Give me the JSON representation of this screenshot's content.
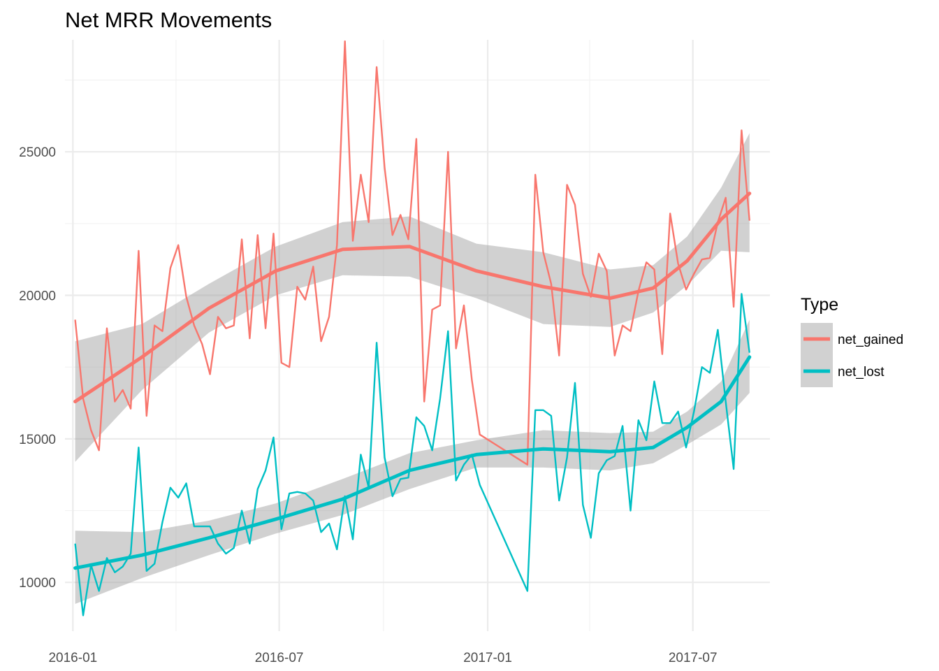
{
  "chart_data": {
    "type": "line",
    "title": "Net MRR Movements",
    "xlabel": "",
    "ylabel": "",
    "x_axis": {
      "kind": "date",
      "range": [
        "2015-12-25",
        "2017-09-07"
      ],
      "tick_labels": [
        "2016-01",
        "2016-07",
        "2017-01",
        "2017-07"
      ],
      "tick_dates": [
        "2016-01-01",
        "2016-07-01",
        "2017-01-01",
        "2017-07-01"
      ],
      "minor_dates": [
        "2016-04-01",
        "2016-10-01",
        "2017-04-01"
      ]
    },
    "y_axis": {
      "range": [
        8300,
        28900
      ],
      "tick_values": [
        10000,
        15000,
        20000,
        25000
      ],
      "tick_labels": [
        "10000",
        "15000",
        "20000",
        "25000"
      ],
      "minor_values": [
        12500,
        17500,
        22500,
        27500
      ]
    },
    "grid": true,
    "legend": {
      "title": "Type",
      "placement": "right",
      "entries": [
        {
          "label": "net_gained",
          "color": "#F8766D"
        },
        {
          "label": "net_lost",
          "color": "#00BFC4"
        }
      ]
    },
    "series": [
      {
        "name": "net_gained",
        "color": "#F8766D",
        "x": [
          "2016-01-03",
          "2016-01-10",
          "2016-01-17",
          "2016-01-24",
          "2016-01-31",
          "2016-02-07",
          "2016-02-14",
          "2016-02-21",
          "2016-02-28",
          "2016-03-06",
          "2016-03-13",
          "2016-03-20",
          "2016-03-27",
          "2016-04-03",
          "2016-04-10",
          "2016-04-17",
          "2016-04-24",
          "2016-05-01",
          "2016-05-08",
          "2016-05-15",
          "2016-05-22",
          "2016-05-29",
          "2016-06-05",
          "2016-06-12",
          "2016-06-19",
          "2016-06-26",
          "2016-07-03",
          "2016-07-10",
          "2016-07-17",
          "2016-07-24",
          "2016-07-31",
          "2016-08-07",
          "2016-08-14",
          "2016-08-21",
          "2016-08-28",
          "2016-09-04",
          "2016-09-11",
          "2016-09-18",
          "2016-09-25",
          "2016-10-02",
          "2016-10-09",
          "2016-10-16",
          "2016-10-23",
          "2016-10-30",
          "2016-11-06",
          "2016-11-13",
          "2016-11-20",
          "2016-11-27",
          "2016-12-04",
          "2016-12-11",
          "2016-12-18",
          "2016-12-25",
          "2017-02-05",
          "2017-02-12",
          "2017-02-19",
          "2017-02-26",
          "2017-03-05",
          "2017-03-12",
          "2017-03-19",
          "2017-03-26",
          "2017-04-02",
          "2017-04-09",
          "2017-04-16",
          "2017-04-23",
          "2017-04-30",
          "2017-05-07",
          "2017-05-14",
          "2017-05-21",
          "2017-05-28",
          "2017-06-04",
          "2017-06-11",
          "2017-06-18",
          "2017-06-25",
          "2017-07-02",
          "2017-07-09",
          "2017-07-16",
          "2017-07-23",
          "2017-07-30",
          "2017-08-06",
          "2017-08-13",
          "2017-08-20"
        ],
        "values": [
          19150,
          16400,
          15300,
          14600,
          18850,
          16300,
          16700,
          16050,
          21550,
          15800,
          18950,
          18750,
          20950,
          21750,
          19950,
          18950,
          18300,
          17250,
          19250,
          18850,
          18950,
          21950,
          18500,
          22100,
          18850,
          22150,
          17650,
          17500,
          20300,
          19850,
          21000,
          18400,
          19250,
          21750,
          28850,
          21900,
          24200,
          22550,
          27950,
          24450,
          22100,
          22800,
          21950,
          25450,
          16300,
          19500,
          19650,
          25000,
          18150,
          19650,
          17050,
          15150,
          14100,
          24200,
          21500,
          20400,
          17900,
          23850,
          23150,
          20750,
          19950,
          21450,
          20850,
          17900,
          18950,
          18750,
          20150,
          21150,
          20900,
          17950,
          22850,
          21100,
          20200,
          20750,
          21250,
          21300,
          22550,
          23400,
          19600,
          25750,
          22600
        ],
        "smooth": [
          16300,
          17850,
          19550,
          20850,
          21600,
          21700,
          20850,
          20300,
          19900,
          20250,
          21200,
          22650,
          23550
        ],
        "band_lower": [
          14200,
          16700,
          18700,
          20000,
          20700,
          20650,
          19900,
          19000,
          18900,
          19400,
          20350,
          21550,
          21500
        ],
        "band_upper": [
          18400,
          19000,
          20400,
          21700,
          22550,
          22750,
          21800,
          21500,
          20900,
          21050,
          22050,
          23750,
          25650
        ]
      },
      {
        "name": "net_lost",
        "color": "#00BFC4",
        "x": [
          "2016-01-03",
          "2016-01-10",
          "2016-01-17",
          "2016-01-24",
          "2016-01-31",
          "2016-02-07",
          "2016-02-14",
          "2016-02-21",
          "2016-02-28",
          "2016-03-06",
          "2016-03-13",
          "2016-03-20",
          "2016-03-27",
          "2016-04-03",
          "2016-04-10",
          "2016-04-17",
          "2016-04-24",
          "2016-05-01",
          "2016-05-08",
          "2016-05-15",
          "2016-05-22",
          "2016-05-29",
          "2016-06-05",
          "2016-06-12",
          "2016-06-19",
          "2016-06-26",
          "2016-07-03",
          "2016-07-10",
          "2016-07-17",
          "2016-07-24",
          "2016-07-31",
          "2016-08-07",
          "2016-08-14",
          "2016-08-21",
          "2016-08-28",
          "2016-09-04",
          "2016-09-11",
          "2016-09-18",
          "2016-09-25",
          "2016-10-02",
          "2016-10-09",
          "2016-10-16",
          "2016-10-23",
          "2016-10-30",
          "2016-11-06",
          "2016-11-13",
          "2016-11-20",
          "2016-11-27",
          "2016-12-04",
          "2016-12-11",
          "2016-12-18",
          "2016-12-25",
          "2017-02-05",
          "2017-02-12",
          "2017-02-19",
          "2017-02-26",
          "2017-03-05",
          "2017-03-12",
          "2017-03-19",
          "2017-03-26",
          "2017-04-02",
          "2017-04-09",
          "2017-04-16",
          "2017-04-23",
          "2017-04-30",
          "2017-05-07",
          "2017-05-14",
          "2017-05-21",
          "2017-05-28",
          "2017-06-04",
          "2017-06-11",
          "2017-06-18",
          "2017-06-25",
          "2017-07-02",
          "2017-07-09",
          "2017-07-16",
          "2017-07-23",
          "2017-07-30",
          "2017-08-06",
          "2017-08-13",
          "2017-08-20"
        ],
        "values": [
          11350,
          8850,
          10600,
          9700,
          10850,
          10350,
          10550,
          11000,
          14700,
          10400,
          10650,
          12100,
          13300,
          12950,
          13450,
          11950,
          11950,
          11950,
          11350,
          11000,
          11200,
          12500,
          11350,
          13250,
          13900,
          15050,
          11850,
          13100,
          13150,
          13100,
          12850,
          11750,
          12050,
          11150,
          13000,
          11500,
          14450,
          13300,
          18350,
          14350,
          13000,
          13600,
          13650,
          15750,
          15450,
          14600,
          16400,
          18750,
          13550,
          14100,
          14450,
          13400,
          9700,
          16000,
          16000,
          15800,
          12850,
          14350,
          16950,
          12700,
          11550,
          13800,
          14250,
          14400,
          15450,
          12500,
          15650,
          14950,
          17000,
          15550,
          15550,
          15950,
          14700,
          15950,
          17500,
          17300,
          18800,
          16300,
          13950,
          20050,
          18000
        ],
        "smooth": [
          10500,
          10950,
          11550,
          12200,
          12900,
          13900,
          14450,
          14650,
          14550,
          14700,
          15400,
          16300,
          17850
        ],
        "band_lower": [
          9250,
          10150,
          10950,
          11700,
          12350,
          13250,
          14000,
          14000,
          13900,
          14150,
          14800,
          15500,
          16600
        ],
        "band_upper": [
          11800,
          11750,
          12150,
          12750,
          13600,
          14500,
          14950,
          15300,
          15200,
          15250,
          15950,
          17000,
          19150
        ]
      }
    ],
    "smooth_x": [
      "2016-01-03",
      "2016-03-02",
      "2016-04-30",
      "2016-06-28",
      "2016-08-26",
      "2016-10-24",
      "2016-12-22",
      "2017-02-19",
      "2017-04-19",
      "2017-05-27",
      "2017-06-26",
      "2017-07-26",
      "2017-08-20"
    ]
  }
}
